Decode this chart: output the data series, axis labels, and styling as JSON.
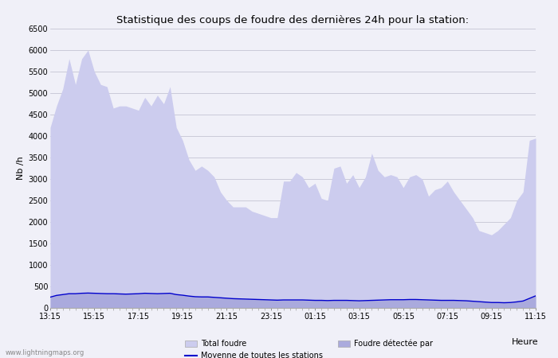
{
  "title": "Statistique des coups de foudre des dernières 24h pour la station:",
  "xlabel": "Heure",
  "ylabel": "Nb /h",
  "ylim": [
    0,
    6500
  ],
  "yticks": [
    0,
    500,
    1000,
    1500,
    2000,
    2500,
    3000,
    3500,
    4000,
    4500,
    5000,
    5500,
    6000,
    6500
  ],
  "xtick_labels": [
    "13:15",
    "15:15",
    "17:15",
    "19:15",
    "21:15",
    "23:15",
    "01:15",
    "03:15",
    "05:15",
    "07:15",
    "09:15",
    "11:15"
  ],
  "bg_color": "#f0f0f8",
  "plot_bg_color": "#f0f0f8",
  "fill_total_color": "#ccccee",
  "fill_detected_color": "#aaaadd",
  "line_color": "#0000cc",
  "watermark": "www.lightningmaps.org",
  "legend": [
    "Total foudre",
    "Foudre détectée par",
    "Moyenne de toutes les stations"
  ],
  "total_foudre": [
    4200,
    4700,
    5100,
    5800,
    5200,
    5800,
    6000,
    5500,
    5200,
    5150,
    4650,
    4700,
    4700,
    4650,
    4600,
    4900,
    4700,
    4950,
    4750,
    5150,
    4200,
    3900,
    3450,
    3200,
    3300,
    3200,
    3050,
    2700,
    2500,
    2350,
    2350,
    2350,
    2250,
    2200,
    2150,
    2100,
    2100,
    2950,
    2950,
    3150,
    3050,
    2800,
    2900,
    2550,
    2500,
    3250,
    3300,
    2900,
    3100,
    2800,
    3050,
    3600,
    3200,
    3050,
    3100,
    3050,
    2800,
    3050,
    3100,
    3000,
    2600,
    2750,
    2800,
    2950,
    2700,
    2500,
    2300,
    2100,
    1800,
    1750,
    1700,
    1800,
    1950,
    2100,
    2500,
    2700,
    3900,
    3950
  ],
  "detected": [
    250,
    290,
    310,
    330,
    330,
    340,
    345,
    340,
    335,
    330,
    330,
    325,
    320,
    325,
    330,
    340,
    335,
    330,
    335,
    340,
    310,
    295,
    275,
    260,
    255,
    255,
    245,
    235,
    225,
    215,
    210,
    205,
    200,
    195,
    190,
    185,
    180,
    185,
    185,
    185,
    185,
    180,
    175,
    175,
    170,
    175,
    175,
    175,
    170,
    165,
    170,
    175,
    180,
    185,
    190,
    190,
    190,
    195,
    195,
    190,
    185,
    180,
    175,
    175,
    175,
    170,
    165,
    155,
    145,
    135,
    125,
    125,
    120,
    125,
    140,
    160,
    220,
    280
  ],
  "n_points": 78
}
